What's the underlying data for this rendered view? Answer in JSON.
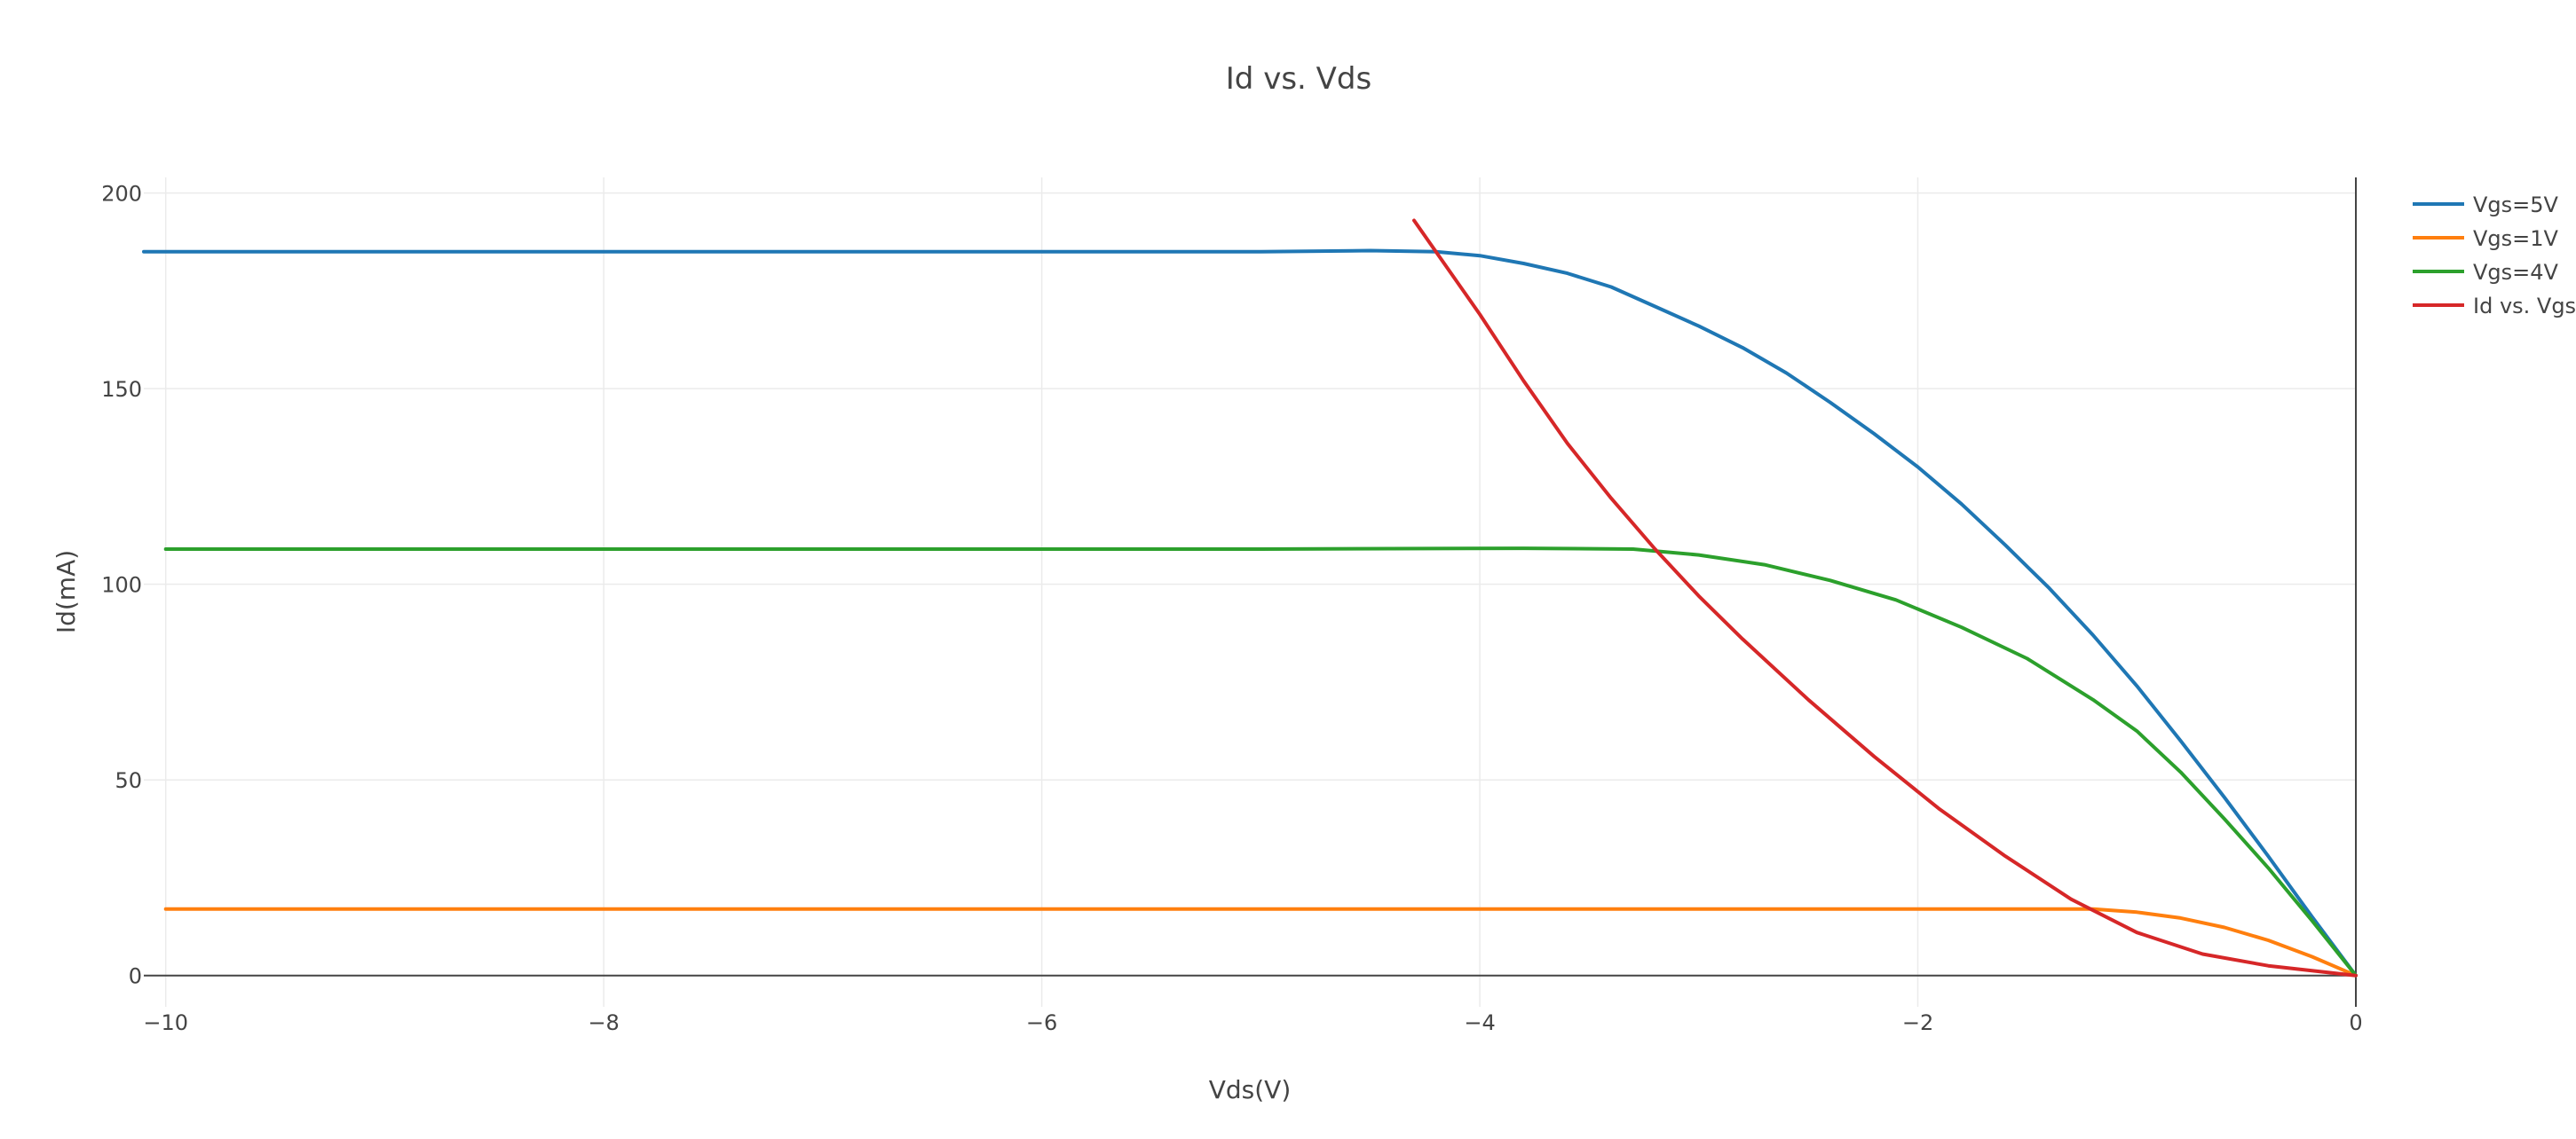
{
  "chart_data": {
    "type": "line",
    "title": "Id vs. Vds",
    "xlabel": "Vds(V)",
    "ylabel": "Id(mA)",
    "xlim": [
      -10.1,
      0
    ],
    "ylim": [
      -8,
      204
    ],
    "xticks": [
      -10,
      -8,
      -6,
      -4,
      -2,
      0
    ],
    "xtick_labels": [
      "−10",
      "−8",
      "−6",
      "−4",
      "−2",
      "0"
    ],
    "yticks": [
      0,
      50,
      100,
      150,
      200
    ],
    "ytick_labels": [
      "0",
      "50",
      "100",
      "150",
      "200"
    ],
    "grid": true,
    "legend_position": "top-right",
    "series": [
      {
        "name": "Vgs=5V",
        "color": "#1f77b4",
        "x": [
          -10.1,
          -5,
          -4.5,
          -4.2,
          -4,
          -3.8,
          -3.6,
          -3.4,
          -3.2,
          -3.0,
          -2.8,
          -2.6,
          -2.4,
          -2.2,
          -2.0,
          -1.8,
          -1.6,
          -1.4,
          -1.2,
          -1.0,
          -0.8,
          -0.6,
          -0.4,
          -0.2,
          0
        ],
        "y": [
          185,
          185,
          185.3,
          185,
          184,
          182,
          179.5,
          176,
          171,
          166,
          160.5,
          154,
          146.5,
          138.5,
          130,
          120.5,
          110,
          99,
          87,
          74,
          60,
          45.5,
          30.5,
          15,
          0
        ]
      },
      {
        "name": "Vgs=1V",
        "color": "#ff7f0e",
        "x": [
          -10,
          -5,
          -1.2,
          -1.0,
          -0.8,
          -0.6,
          -0.4,
          -0.2,
          0
        ],
        "y": [
          17,
          17,
          17,
          16.2,
          14.7,
          12.3,
          9,
          4.8,
          0
        ]
      },
      {
        "name": "Vgs=4V",
        "color": "#2ca02c",
        "x": [
          -10,
          -5,
          -3.8,
          -3.3,
          -3.0,
          -2.7,
          -2.4,
          -2.1,
          -1.8,
          -1.5,
          -1.2,
          -1.0,
          -0.8,
          -0.6,
          -0.4,
          -0.2,
          0
        ],
        "y": [
          109,
          109,
          109.2,
          109,
          107.5,
          105,
          101,
          96,
          89,
          81,
          70.5,
          62.5,
          52,
          40,
          27.5,
          14,
          0
        ]
      },
      {
        "name": "Id vs. Vgs",
        "color": "#d62728",
        "x": [
          -4.3,
          -4.0,
          -3.8,
          -3.6,
          -3.4,
          -3.2,
          -3.0,
          -2.8,
          -2.5,
          -2.2,
          -1.9,
          -1.6,
          -1.3,
          -1.0,
          -0.7,
          -0.4,
          0
        ],
        "y": [
          193,
          169,
          152,
          136,
          122,
          109,
          97,
          86,
          70.5,
          56,
          42.5,
          30.5,
          19.5,
          11,
          5.5,
          2.5,
          0
        ]
      }
    ]
  }
}
